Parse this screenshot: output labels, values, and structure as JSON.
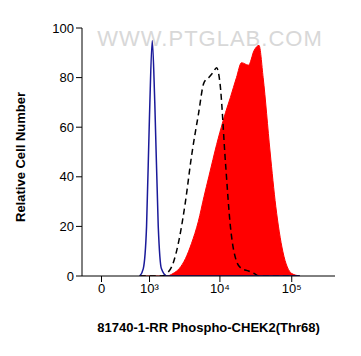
{
  "chart_data": {
    "type": "histogram",
    "annotation": "WWW.PTGLAB.COM",
    "x_label": "81740-1-RR Phospho-CHEK2(Thr68)",
    "y_label": "Relative Cell Number",
    "log": "x",
    "grid": false,
    "tick_labels": true,
    "xlim": [
      -300,
      400000
    ],
    "xticks": [
      {
        "value": 0,
        "label": "0"
      },
      {
        "value": 1000,
        "label": "10³"
      },
      {
        "value": 10000,
        "label": "10⁴"
      },
      {
        "value": 100000,
        "label": "10⁵"
      }
    ],
    "ylim": [
      0,
      100
    ],
    "yticks": [
      0,
      20,
      40,
      60,
      80,
      100
    ],
    "x": [
      700,
      800,
      900,
      1000,
      1100,
      1200,
      1350,
      1500,
      1800,
      2200,
      2700,
      3300,
      4000,
      5000,
      6000,
      7000,
      8000,
      9000,
      10000,
      12000,
      14000,
      17000,
      20000,
      25000,
      30000,
      35000,
      40000,
      50000,
      60000,
      75000,
      100000,
      130000
    ],
    "series": [
      {
        "type": "area",
        "color": "#ff0000",
        "line_style": "solid",
        "values": [
          0,
          0,
          0,
          0,
          0,
          0,
          0,
          0,
          0,
          1,
          3,
          7,
          13,
          22,
          32,
          40,
          47,
          53,
          58,
          66,
          72,
          80,
          86,
          85,
          91,
          93,
          80,
          50,
          28,
          10,
          1,
          0
        ]
      },
      {
        "type": "line",
        "color": "#000000",
        "line_style": "dashed",
        "values": [
          0,
          0,
          0,
          0,
          0,
          0,
          0,
          0,
          1,
          5,
          15,
          30,
          48,
          65,
          78,
          80,
          82,
          84,
          78,
          45,
          20,
          6,
          3,
          2,
          1,
          0,
          0,
          0,
          0,
          0,
          0,
          0
        ]
      },
      {
        "type": "line",
        "color": "#1a1a9a",
        "line_style": "solid",
        "values": [
          0,
          3,
          20,
          65,
          95,
          70,
          20,
          3,
          0,
          0,
          0,
          0,
          0,
          0,
          0,
          0,
          0,
          0,
          0,
          0,
          0,
          0,
          0,
          0,
          0,
          0,
          0,
          0,
          0,
          0,
          0,
          0
        ]
      }
    ]
  }
}
